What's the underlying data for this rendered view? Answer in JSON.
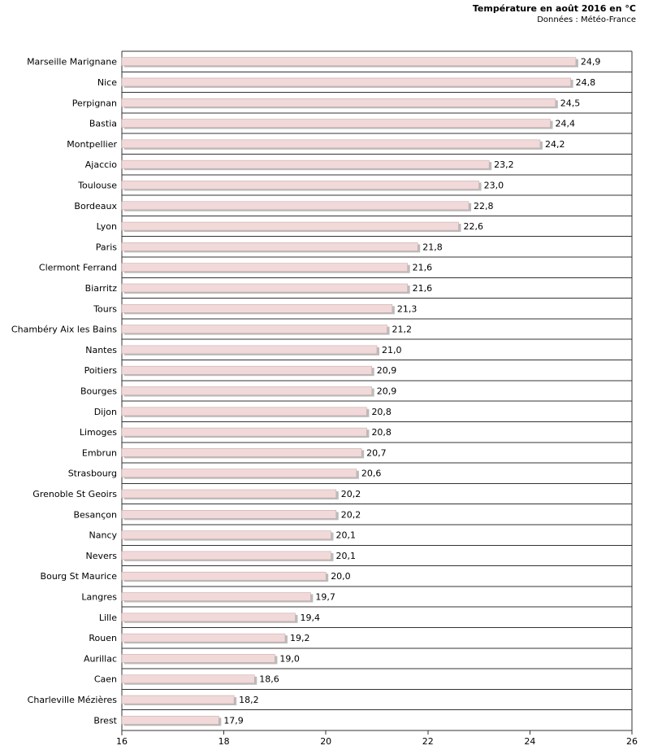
{
  "chart_data": {
    "type": "bar",
    "orientation": "horizontal",
    "title": "Température en août 2016 en °C",
    "subtitle": "Données : Météo-France",
    "categories": [
      "Marseille Marignane",
      "Nice",
      "Perpignan",
      "Bastia",
      "Montpellier",
      "Ajaccio",
      "Toulouse",
      "Bordeaux",
      "Lyon",
      "Paris",
      "Clermont Ferrand",
      "Biarritz",
      "Tours",
      "Chambéry Aix les Bains",
      "Nantes",
      "Poitiers",
      "Bourges",
      "Dijon",
      "Limoges",
      "Embrun",
      "Strasbourg",
      "Grenoble St Geoirs",
      "Besançon",
      "Nancy",
      "Nevers",
      "Bourg St Maurice",
      "Langres",
      "Lille",
      "Rouen",
      "Aurillac",
      "Caen",
      "Charleville Mézières",
      "Brest"
    ],
    "values": [
      24.9,
      24.8,
      24.5,
      24.4,
      24.2,
      23.2,
      23.0,
      22.8,
      22.6,
      21.8,
      21.6,
      21.6,
      21.3,
      21.2,
      21.0,
      20.9,
      20.9,
      20.8,
      20.8,
      20.7,
      20.6,
      20.2,
      20.2,
      20.1,
      20.1,
      20.0,
      19.7,
      19.4,
      19.2,
      19.0,
      18.6,
      18.2,
      17.9
    ],
    "value_labels": [
      "24,9",
      "24,8",
      "24,5",
      "24,4",
      "24,2",
      "23,2",
      "23,0",
      "22,8",
      "22,6",
      "21,8",
      "21,6",
      "21,6",
      "21,3",
      "21,2",
      "21,0",
      "20,9",
      "20,9",
      "20,8",
      "20,8",
      "20,7",
      "20,6",
      "20,2",
      "20,2",
      "20,1",
      "20,1",
      "20,0",
      "19,7",
      "19,4",
      "19,2",
      "19,0",
      "18,6",
      "18,2",
      "17,9"
    ],
    "xlim": [
      16,
      26
    ],
    "x_ticks": [
      16,
      18,
      20,
      22,
      24,
      26
    ],
    "grid": "horizontal lines between categories, vertical at axis min and max",
    "colors": {
      "bar_fill": "#f2d9d9",
      "bar_stroke": "#c9aaaa",
      "bar_shadow": "#bbbbbb",
      "grid": "#333333"
    }
  }
}
